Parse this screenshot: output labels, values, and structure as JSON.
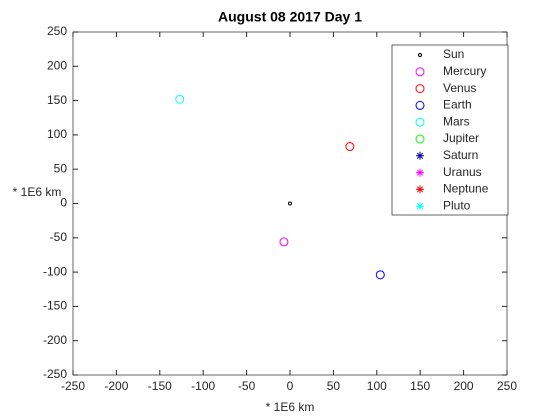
{
  "chart_data": {
    "type": "scatter",
    "title": "August 08 2017 Day 1",
    "x_label": "* 1E6 km",
    "y_label": "* 1E6 km",
    "xlim": [
      -250,
      250
    ],
    "ylim": [
      -250,
      250
    ],
    "xticks": [
      -250,
      -200,
      -150,
      -100,
      -50,
      0,
      50,
      100,
      150,
      200,
      250
    ],
    "yticks": [
      -250,
      -200,
      -150,
      -100,
      -50,
      0,
      50,
      100,
      150,
      200,
      250
    ],
    "legend_position": "upper right",
    "series": [
      {
        "name": "Sun",
        "color": "#000000",
        "marker": "dot",
        "x": [
          0
        ],
        "y": [
          0
        ]
      },
      {
        "name": "Mercury",
        "color": "#ff00ff",
        "marker": "circle",
        "x": [
          -7
        ],
        "y": [
          -56
        ]
      },
      {
        "name": "Venus",
        "color": "#ff0000",
        "marker": "circle",
        "x": [
          69
        ],
        "y": [
          83
        ]
      },
      {
        "name": "Earth",
        "color": "#0000ff",
        "marker": "circle",
        "x": [
          104
        ],
        "y": [
          -104
        ]
      },
      {
        "name": "Mars",
        "color": "#00ffff",
        "marker": "circle",
        "x": [
          -127
        ],
        "y": [
          152
        ]
      },
      {
        "name": "Jupiter",
        "color": "#00ff00",
        "marker": "circle",
        "x": [],
        "y": []
      },
      {
        "name": "Saturn",
        "color": "#0000a0",
        "marker": "asterisk",
        "x": [],
        "y": []
      },
      {
        "name": "Uranus",
        "color": "#ff00ff",
        "marker": "asterisk",
        "x": [],
        "y": []
      },
      {
        "name": "Neptune",
        "color": "#ff0000",
        "marker": "asterisk",
        "x": [],
        "y": []
      },
      {
        "name": "Pluto",
        "color": "#00ffff",
        "marker": "asterisk",
        "x": [],
        "y": []
      }
    ]
  }
}
